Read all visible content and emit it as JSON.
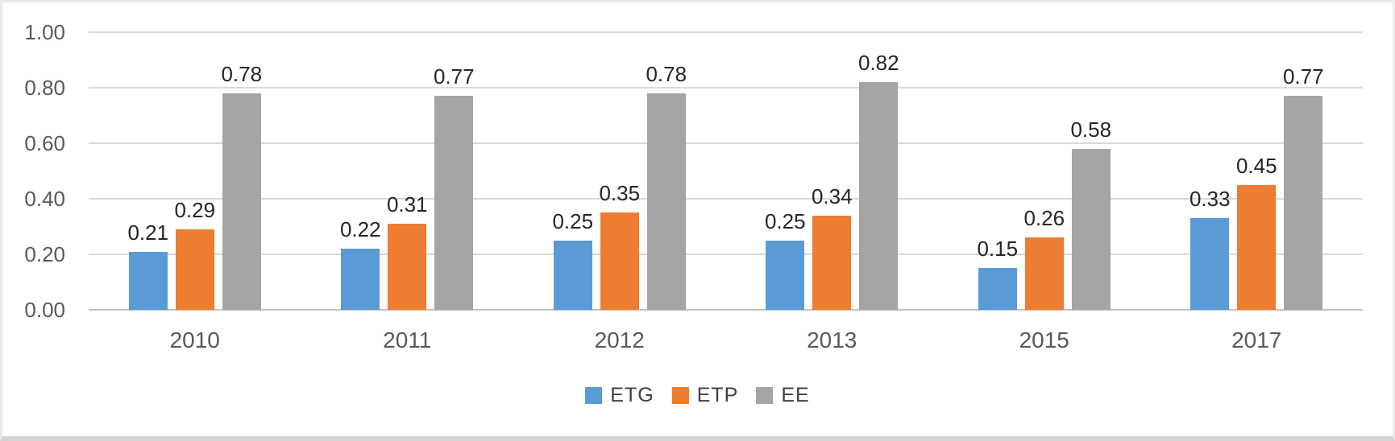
{
  "chart_data": {
    "type": "bar",
    "title": "",
    "xlabel": "",
    "ylabel": "",
    "categories": [
      "2010",
      "2011",
      "2012",
      "2013",
      "2015",
      "2017"
    ],
    "series": [
      {
        "name": "ETG",
        "color": "#5B9BD5",
        "values": [
          0.21,
          0.22,
          0.25,
          0.25,
          0.15,
          0.33
        ]
      },
      {
        "name": "ETP",
        "color": "#ED7D31",
        "values": [
          0.29,
          0.31,
          0.35,
          0.34,
          0.26,
          0.45
        ]
      },
      {
        "name": "EE",
        "color": "#A5A5A5",
        "values": [
          0.78,
          0.77,
          0.78,
          0.82,
          0.58,
          0.77
        ]
      }
    ],
    "data_labels": {
      "position": "outside-end",
      "format": "0.00",
      "values_text": [
        [
          "0.21",
          "0.29",
          "0.78"
        ],
        [
          "0.22",
          "0.31",
          "0.77"
        ],
        [
          "0.25",
          "0.35",
          "0.78"
        ],
        [
          "0.25",
          "0.34",
          "0.82"
        ],
        [
          "0.15",
          "0.26",
          "0.58"
        ],
        [
          "0.33",
          "0.45",
          "0.77"
        ]
      ]
    },
    "ylim": [
      0,
      1.0
    ],
    "ytick_labels": [
      "0.00",
      "0.20",
      "0.40",
      "0.60",
      "0.80",
      "1.00"
    ],
    "ytick_values": [
      0,
      0.2,
      0.4,
      0.6,
      0.8,
      1.0
    ],
    "grid": true,
    "legend_position": "bottom",
    "legend_entries": [
      "ETG",
      "ETP",
      "EE"
    ]
  },
  "style_colors": {
    "gridline": "#d9d9d9",
    "axis_line": "#c3c3c3",
    "tick_label": "#595959",
    "category_label": "#595959",
    "data_label": "#262626",
    "legend_label": "#404040",
    "background": "#ffffff",
    "frame_border": "#eaeaea",
    "frame_bottom_border": "#d3d3d3"
  }
}
